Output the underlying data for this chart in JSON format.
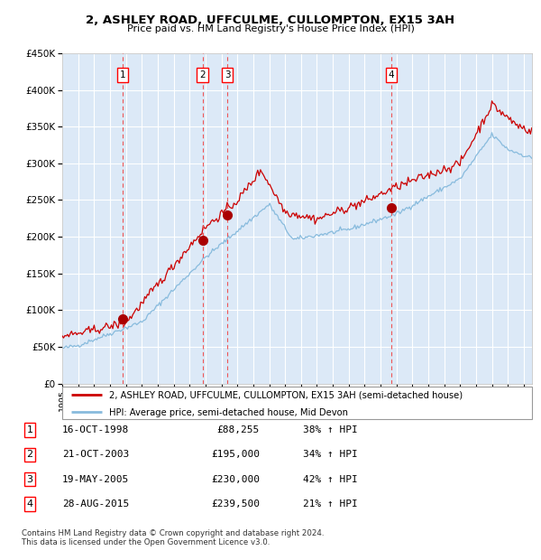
{
  "title": "2, ASHLEY ROAD, UFFCULME, CULLOMPTON, EX15 3AH",
  "subtitle": "Price paid vs. HM Land Registry's House Price Index (HPI)",
  "legend_line1": "2, ASHLEY ROAD, UFFCULME, CULLOMPTON, EX15 3AH (semi-detached house)",
  "legend_line2": "HPI: Average price, semi-detached house, Mid Devon",
  "footer": "Contains HM Land Registry data © Crown copyright and database right 2024.\nThis data is licensed under the Open Government Licence v3.0.",
  "transactions": [
    {
      "num": 1,
      "date": "16-OCT-1998",
      "price": 88255,
      "hpi_pct": "38% ↑ HPI",
      "year": 1998.79
    },
    {
      "num": 2,
      "date": "21-OCT-2003",
      "price": 195000,
      "hpi_pct": "34% ↑ HPI",
      "year": 2003.81
    },
    {
      "num": 3,
      "date": "19-MAY-2005",
      "price": 230000,
      "hpi_pct": "42% ↑ HPI",
      "year": 2005.38
    },
    {
      "num": 4,
      "date": "28-AUG-2015",
      "price": 239500,
      "hpi_pct": "21% ↑ HPI",
      "year": 2015.66
    }
  ],
  "ylim": [
    0,
    450000
  ],
  "xlim_start": 1995.0,
  "xlim_end": 2024.5,
  "bg_color": "#dce9f7",
  "line_color_red": "#cc0000",
  "line_color_blue": "#88bbdd",
  "grid_color": "#ffffff",
  "vline_color": "#ee5555",
  "dot_color": "#aa0000"
}
